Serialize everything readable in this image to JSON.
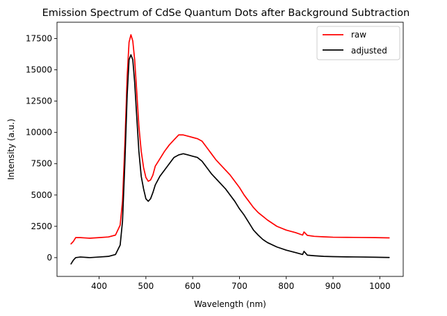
{
  "chart_data": {
    "type": "line",
    "title": "Emission Spectrum of CdSe Quantum Dots after Background Subtraction",
    "xlabel": "Wavelength (nm)",
    "ylabel": "Intensity (a.u.)",
    "xlim": [
      310,
      1050
    ],
    "ylim": [
      -1500,
      18800
    ],
    "xticks": [
      400,
      500,
      600,
      700,
      800,
      900,
      1000
    ],
    "yticks": [
      0,
      2500,
      5000,
      7500,
      10000,
      12500,
      15000,
      17500
    ],
    "grid": false,
    "legend_position": "top-right",
    "series": [
      {
        "name": "raw",
        "color": "#ff0000",
        "x": [
          340,
          345,
          350,
          360,
          380,
          400,
          420,
          435,
          445,
          450,
          455,
          460,
          464,
          468,
          472,
          476,
          480,
          485,
          490,
          495,
          500,
          505,
          510,
          515,
          520,
          530,
          540,
          550,
          560,
          570,
          580,
          590,
          600,
          610,
          620,
          630,
          640,
          650,
          660,
          670,
          680,
          690,
          700,
          710,
          720,
          730,
          740,
          750,
          760,
          780,
          800,
          820,
          835,
          838,
          845,
          860,
          880,
          900,
          930,
          960,
          990,
          1020
        ],
        "y": [
          1100,
          1300,
          1600,
          1600,
          1550,
          1600,
          1650,
          1800,
          2600,
          4500,
          9000,
          14500,
          17200,
          17800,
          17300,
          15800,
          13500,
          10500,
          8500,
          7200,
          6400,
          6100,
          6200,
          6600,
          7300,
          7900,
          8500,
          9000,
          9400,
          9800,
          9800,
          9700,
          9600,
          9500,
          9300,
          8800,
          8300,
          7800,
          7400,
          7000,
          6600,
          6100,
          5600,
          5000,
          4500,
          4000,
          3600,
          3300,
          3000,
          2500,
          2200,
          2000,
          1800,
          2050,
          1780,
          1700,
          1660,
          1630,
          1620,
          1610,
          1600,
          1580
        ]
      },
      {
        "name": "adjusted",
        "color": "#000000",
        "x": [
          340,
          345,
          350,
          360,
          380,
          400,
          420,
          435,
          445,
          450,
          455,
          460,
          464,
          468,
          472,
          476,
          480,
          485,
          490,
          495,
          500,
          505,
          510,
          515,
          520,
          530,
          540,
          550,
          560,
          570,
          580,
          590,
          600,
          610,
          620,
          630,
          640,
          650,
          660,
          670,
          680,
          690,
          700,
          710,
          720,
          730,
          740,
          750,
          760,
          780,
          800,
          820,
          835,
          838,
          845,
          860,
          880,
          900,
          930,
          960,
          990,
          1020
        ],
        "y": [
          -500,
          -200,
          0,
          50,
          0,
          50,
          100,
          250,
          1000,
          2900,
          7500,
          13000,
          15800,
          16200,
          15800,
          14000,
          11500,
          8500,
          6500,
          5500,
          4700,
          4500,
          4700,
          5200,
          5800,
          6500,
          7000,
          7500,
          8000,
          8200,
          8300,
          8200,
          8100,
          8000,
          7700,
          7200,
          6700,
          6300,
          5900,
          5500,
          5000,
          4500,
          3900,
          3400,
          2800,
          2200,
          1800,
          1450,
          1200,
          850,
          600,
          400,
          250,
          500,
          200,
          150,
          100,
          80,
          60,
          50,
          30,
          10
        ]
      }
    ]
  }
}
